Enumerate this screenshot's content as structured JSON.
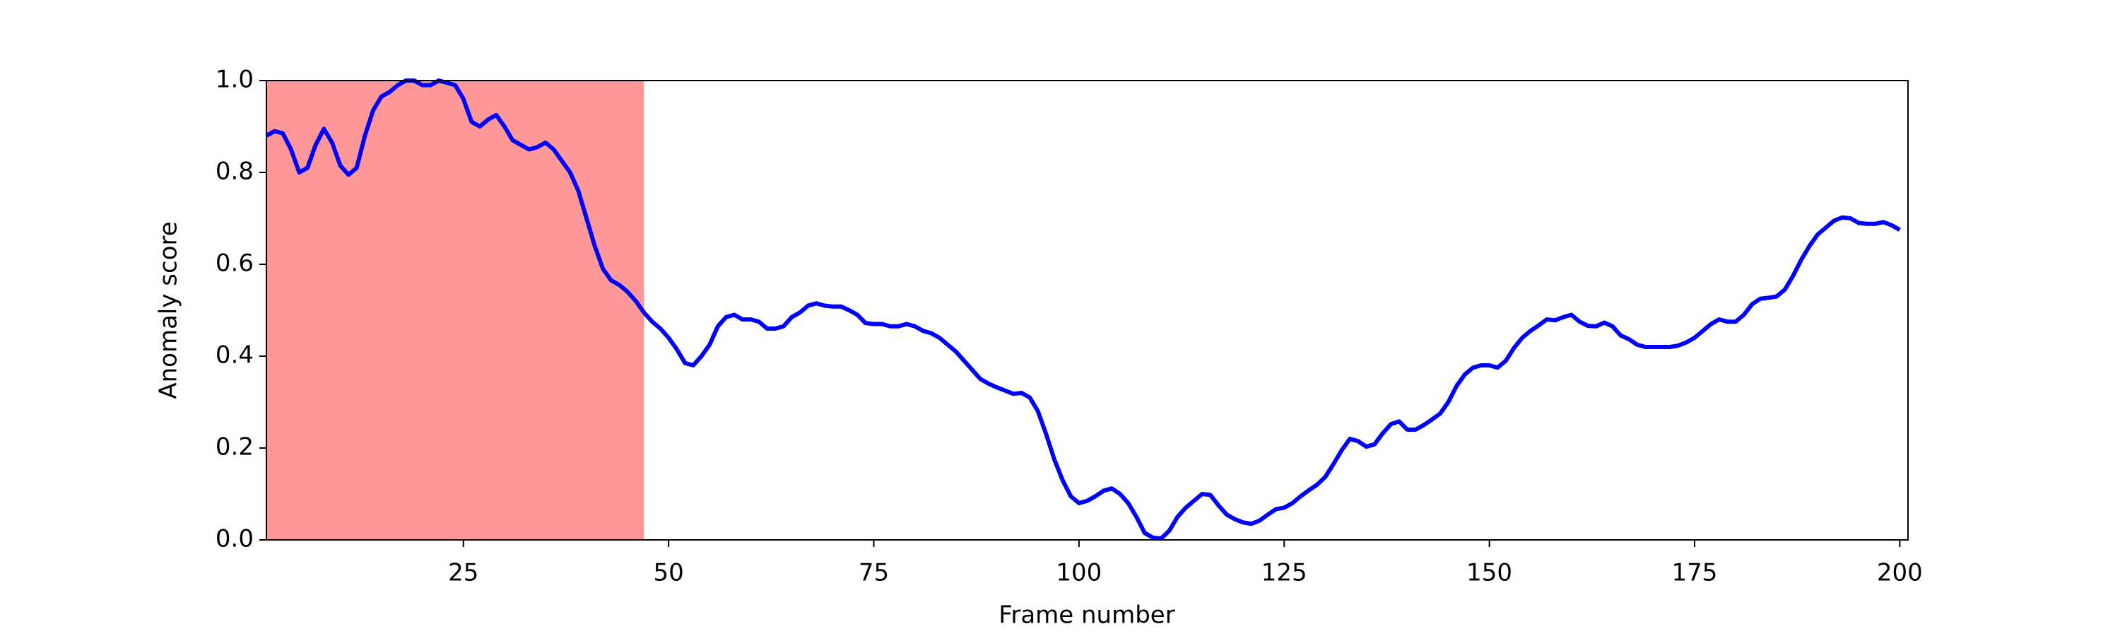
{
  "chart_data": {
    "type": "line",
    "xlabel": "Frame number",
    "ylabel": "Anomaly score",
    "x": [
      1,
      2,
      3,
      4,
      5,
      6,
      7,
      8,
      9,
      10,
      11,
      12,
      13,
      14,
      15,
      16,
      17,
      18,
      19,
      20,
      21,
      22,
      23,
      24,
      25,
      26,
      27,
      28,
      29,
      30,
      31,
      32,
      33,
      34,
      35,
      36,
      37,
      38,
      39,
      40,
      41,
      42,
      43,
      44,
      45,
      46,
      47,
      48,
      49,
      50,
      51,
      52,
      53,
      54,
      55,
      56,
      57,
      58,
      59,
      60,
      61,
      62,
      63,
      64,
      65,
      66,
      67,
      68,
      69,
      70,
      71,
      72,
      73,
      74,
      75,
      76,
      77,
      78,
      79,
      80,
      81,
      82,
      83,
      84,
      85,
      86,
      87,
      88,
      89,
      90,
      91,
      92,
      93,
      94,
      95,
      96,
      97,
      98,
      99,
      100,
      101,
      102,
      103,
      104,
      105,
      106,
      107,
      108,
      109,
      110,
      111,
      112,
      113,
      114,
      115,
      116,
      117,
      118,
      119,
      120,
      121,
      122,
      123,
      124,
      125,
      126,
      127,
      128,
      129,
      130,
      131,
      132,
      133,
      134,
      135,
      136,
      137,
      138,
      139,
      140,
      141,
      142,
      143,
      144,
      145,
      146,
      147,
      148,
      149,
      150,
      151,
      152,
      153,
      154,
      155,
      156,
      157,
      158,
      159,
      160,
      161,
      162,
      163,
      164,
      165,
      166,
      167,
      168,
      169,
      170,
      171,
      172,
      173,
      174,
      175,
      176,
      177,
      178,
      179,
      180,
      181,
      182,
      183,
      184,
      185,
      186,
      187,
      188,
      189,
      190,
      191,
      192,
      193,
      194,
      195,
      196,
      197,
      198,
      199,
      200
    ],
    "values": [
      0.88,
      0.89,
      0.885,
      0.85,
      0.8,
      0.81,
      0.86,
      0.895,
      0.865,
      0.815,
      0.795,
      0.81,
      0.88,
      0.935,
      0.965,
      0.975,
      0.99,
      1.0,
      1.0,
      0.99,
      0.99,
      1.0,
      0.995,
      0.99,
      0.96,
      0.91,
      0.9,
      0.915,
      0.925,
      0.9,
      0.87,
      0.86,
      0.85,
      0.855,
      0.865,
      0.85,
      0.825,
      0.8,
      0.76,
      0.7,
      0.64,
      0.59,
      0.565,
      0.555,
      0.54,
      0.52,
      0.495,
      0.475,
      0.46,
      0.44,
      0.415,
      0.385,
      0.38,
      0.4,
      0.425,
      0.465,
      0.485,
      0.49,
      0.48,
      0.48,
      0.475,
      0.46,
      0.46,
      0.465,
      0.485,
      0.495,
      0.51,
      0.515,
      0.51,
      0.508,
      0.508,
      0.5,
      0.49,
      0.472,
      0.47,
      0.47,
      0.465,
      0.465,
      0.47,
      0.465,
      0.455,
      0.45,
      0.44,
      0.425,
      0.41,
      0.39,
      0.37,
      0.35,
      0.34,
      0.332,
      0.325,
      0.318,
      0.32,
      0.31,
      0.28,
      0.23,
      0.175,
      0.13,
      0.095,
      0.08,
      0.085,
      0.095,
      0.107,
      0.112,
      0.1,
      0.08,
      0.05,
      0.015,
      0.005,
      0.003,
      0.02,
      0.05,
      0.07,
      0.085,
      0.1,
      0.098,
      0.075,
      0.055,
      0.045,
      0.038,
      0.035,
      0.042,
      0.055,
      0.067,
      0.07,
      0.08,
      0.095,
      0.108,
      0.12,
      0.137,
      0.165,
      0.195,
      0.22,
      0.215,
      0.203,
      0.208,
      0.232,
      0.252,
      0.258,
      0.24,
      0.24,
      0.25,
      0.262,
      0.275,
      0.3,
      0.335,
      0.36,
      0.375,
      0.38,
      0.38,
      0.375,
      0.39,
      0.418,
      0.44,
      0.455,
      0.467,
      0.48,
      0.478,
      0.485,
      0.49,
      0.475,
      0.466,
      0.465,
      0.473,
      0.465,
      0.445,
      0.437,
      0.425,
      0.42,
      0.42,
      0.42,
      0.42,
      0.423,
      0.43,
      0.44,
      0.455,
      0.47,
      0.48,
      0.475,
      0.475,
      0.49,
      0.513,
      0.525,
      0.527,
      0.53,
      0.545,
      0.575,
      0.61,
      0.64,
      0.665,
      0.68,
      0.695,
      0.702,
      0.7,
      0.69,
      0.688,
      0.688,
      0.692,
      0.685,
      0.675
    ],
    "color": "#0000ff",
    "highlight": {
      "xmin": 1,
      "xmax": 47,
      "color": "#ff9999"
    },
    "xlim": [
      1,
      201
    ],
    "ylim": [
      0,
      1
    ],
    "xticks": [
      25,
      50,
      75,
      100,
      125,
      150,
      175,
      200
    ],
    "yticks": [
      {
        "value": 0,
        "label": "0.0"
      },
      {
        "value": 0.2,
        "label": "0.2"
      },
      {
        "value": 0.4,
        "label": "0.4"
      },
      {
        "value": 0.6,
        "label": "0.6"
      },
      {
        "value": 0.8,
        "label": "0.8"
      },
      {
        "value": 1,
        "label": "1.0"
      }
    ],
    "grid": false
  }
}
